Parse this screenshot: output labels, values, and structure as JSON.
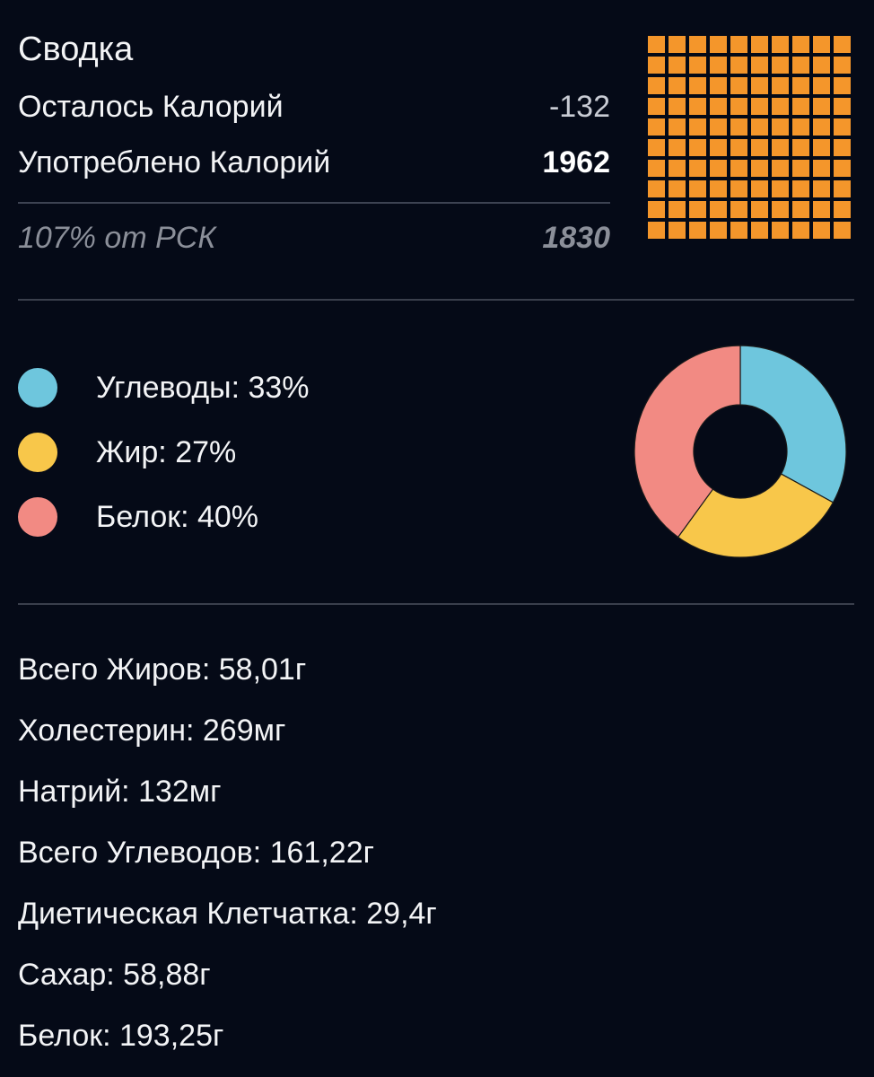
{
  "summary": {
    "title": "Сводка",
    "remaining_label": "Осталось Калорий",
    "remaining_value": "-132",
    "consumed_label": "Употреблено Калорий",
    "consumed_value": "1962",
    "rdi_label": "107% от РСК",
    "rdi_value": "1830"
  },
  "waffle": {
    "rows": 10,
    "cols": 10,
    "filled": 100,
    "color": "#f4962b"
  },
  "macros": {
    "items": [
      {
        "label": "Углеводы: 33%",
        "percent": 33,
        "color": "#6ec6dd"
      },
      {
        "label": "Жир: 27%",
        "percent": 27,
        "color": "#f8c74a"
      },
      {
        "label": "Белок: 40%",
        "percent": 40,
        "color": "#f28a83"
      }
    ]
  },
  "nutrients": [
    "Всего Жиров: 58,01г",
    "Холестерин: 269мг",
    "Натрий: 132мг",
    "Всего Углеводов: 161,22г",
    "Диетическая Клетчатка: 29,4г",
    "Сахар: 58,88г",
    "Белок: 193,25г"
  ],
  "colors": {
    "background": "#050a17",
    "divider": "#3a3f4c"
  }
}
